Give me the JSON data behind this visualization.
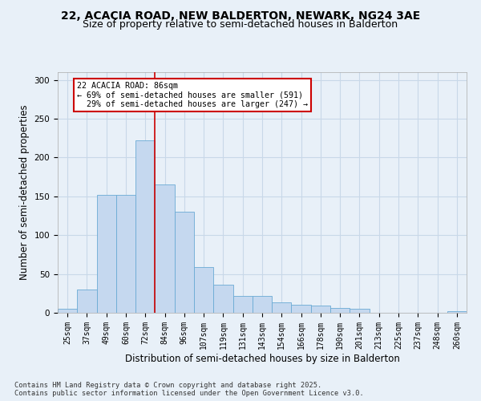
{
  "title1": "22, ACACIA ROAD, NEW BALDERTON, NEWARK, NG24 3AE",
  "title2": "Size of property relative to semi-detached houses in Balderton",
  "xlabel": "Distribution of semi-detached houses by size in Balderton",
  "ylabel": "Number of semi-detached properties",
  "categories": [
    "25sqm",
    "37sqm",
    "49sqm",
    "60sqm",
    "72sqm",
    "84sqm",
    "96sqm",
    "107sqm",
    "119sqm",
    "131sqm",
    "143sqm",
    "154sqm",
    "166sqm",
    "178sqm",
    "190sqm",
    "201sqm",
    "213sqm",
    "225sqm",
    "237sqm",
    "248sqm",
    "260sqm"
  ],
  "values": [
    5,
    30,
    152,
    152,
    222,
    165,
    130,
    59,
    36,
    22,
    22,
    13,
    10,
    9,
    6,
    5,
    0,
    0,
    0,
    0,
    2
  ],
  "bar_color": "#c5d8ef",
  "bar_edge_color": "#6aaad4",
  "vline_index": 5,
  "marker_label": "22 ACACIA ROAD: 86sqm",
  "smaller_pct": "69%",
  "smaller_n": 591,
  "larger_pct": "29%",
  "larger_n": 247,
  "annotation_box_color": "#ffffff",
  "annotation_box_edge": "#cc0000",
  "vline_color": "#cc0000",
  "grid_color": "#c8d8e8",
  "bg_color": "#e8f0f8",
  "ylim": [
    0,
    310
  ],
  "yticks": [
    0,
    50,
    100,
    150,
    200,
    250,
    300
  ],
  "footer": "Contains HM Land Registry data © Crown copyright and database right 2025.\nContains public sector information licensed under the Open Government Licence v3.0.",
  "title_fontsize": 10,
  "subtitle_fontsize": 9,
  "tick_fontsize": 7,
  "label_fontsize": 8.5
}
